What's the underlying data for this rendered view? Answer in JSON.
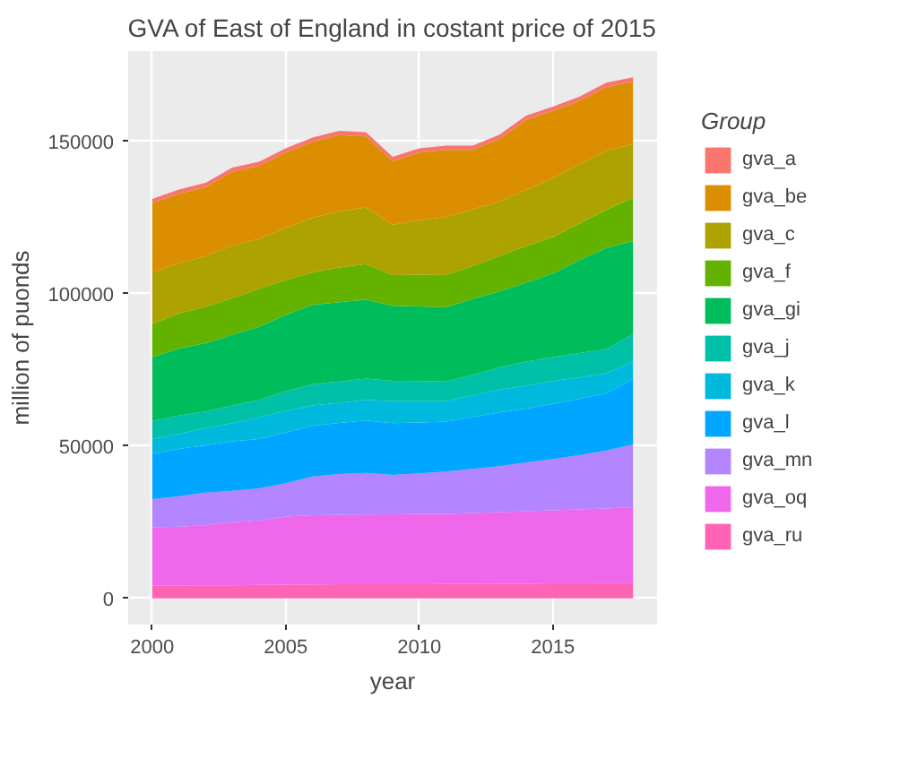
{
  "chart_data": {
    "type": "area",
    "stacked": true,
    "title": "GVA of East of England in costant price of 2015",
    "xlabel": "year",
    "ylabel": "million of puonds",
    "legend_title": "Group",
    "x": [
      2000,
      2001,
      2002,
      2003,
      2004,
      2005,
      2006,
      2007,
      2008,
      2009,
      2010,
      2011,
      2012,
      2013,
      2014,
      2015,
      2016,
      2017,
      2018
    ],
    "xlim": [
      1999.1,
      2018.9
    ],
    "xticks": [
      2000,
      2005,
      2010,
      2015
    ],
    "ylim": [
      -8600,
      179600
    ],
    "yticks": [
      0,
      50000,
      100000,
      150000
    ],
    "grid": true,
    "legend": "right",
    "series": [
      {
        "name": "gva_ru",
        "color": "#ff63b6",
        "values": [
          4200,
          4200,
          4300,
          4300,
          4400,
          4500,
          4500,
          4600,
          4600,
          4600,
          4600,
          4700,
          4700,
          4800,
          4800,
          4900,
          4900,
          5000,
          5000
        ]
      },
      {
        "name": "gva_oq",
        "color": "#ef67eb",
        "values": [
          19100,
          19300,
          19700,
          20700,
          21200,
          22300,
          22800,
          22800,
          22900,
          23000,
          23100,
          23000,
          23300,
          23500,
          23800,
          24000,
          24300,
          24500,
          24900
        ]
      },
      {
        "name": "gva_mn",
        "color": "#b385ff",
        "values": [
          9300,
          10000,
          10700,
          10300,
          10500,
          11000,
          12700,
          13400,
          13700,
          12900,
          13300,
          13900,
          14500,
          15100,
          16000,
          16800,
          17800,
          19000,
          20600
        ]
      },
      {
        "name": "gva_l",
        "color": "#00a6ff",
        "values": [
          14900,
          15500,
          15500,
          16200,
          16200,
          16700,
          16600,
          16800,
          17200,
          17000,
          16700,
          16400,
          17000,
          17600,
          17700,
          18100,
          18500,
          18800,
          21500
        ]
      },
      {
        "name": "gva_k",
        "color": "#00bade",
        "values": [
          4800,
          5000,
          5700,
          6000,
          7100,
          7000,
          6700,
          6600,
          6700,
          7200,
          7000,
          6700,
          7100,
          7500,
          7500,
          7500,
          7000,
          6600,
          5800
        ]
      },
      {
        "name": "gva_j",
        "color": "#00c1a7",
        "values": [
          5900,
          6000,
          5400,
          5800,
          5700,
          6500,
          7000,
          7000,
          7000,
          6700,
          6600,
          6500,
          6700,
          7300,
          7900,
          7900,
          8000,
          7900,
          8900
        ]
      },
      {
        "name": "gva_gi",
        "color": "#00bd5c",
        "values": [
          21000,
          22000,
          22400,
          23200,
          24000,
          25000,
          26000,
          26000,
          25900,
          24600,
          24500,
          24300,
          25000,
          24900,
          25900,
          27400,
          30500,
          33200,
          30500
        ]
      },
      {
        "name": "gva_f",
        "color": "#64b200",
        "values": [
          10800,
          11500,
          12000,
          12000,
          12500,
          11500,
          10700,
          11400,
          11700,
          10100,
          10400,
          10600,
          10700,
          11700,
          12000,
          12000,
          12000,
          12500,
          14300
        ]
      },
      {
        "name": "gva_c",
        "color": "#aea200",
        "values": [
          17000,
          16500,
          16600,
          17300,
          16400,
          17000,
          17900,
          18400,
          18600,
          16500,
          17800,
          19100,
          18600,
          17900,
          18400,
          19300,
          19500,
          19300,
          17600
        ]
      },
      {
        "name": "gva_be",
        "color": "#db8e00",
        "values": [
          22700,
          22800,
          22700,
          24200,
          23900,
          24800,
          24900,
          25000,
          23300,
          20900,
          22300,
          22000,
          19600,
          20500,
          23000,
          22100,
          20800,
          21000,
          20500
        ]
      },
      {
        "name": "gva_a",
        "color": "#f8766d",
        "values": [
          1400,
          1400,
          1400,
          1400,
          1400,
          1400,
          1400,
          1400,
          1400,
          1400,
          1400,
          1400,
          1400,
          1400,
          1400,
          1400,
          1400,
          1400,
          1400
        ]
      }
    ]
  }
}
